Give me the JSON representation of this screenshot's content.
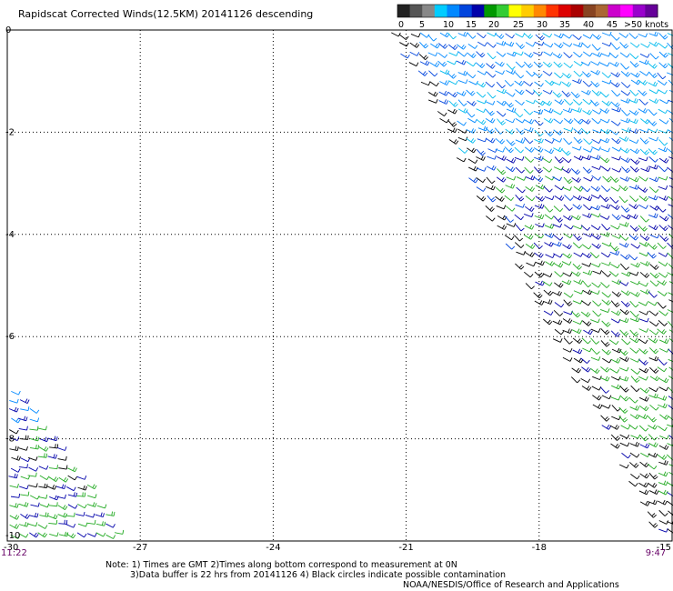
{
  "title": "Rapidscat Corrected Winds(12.5KM) 20141126 descending",
  "legend": {
    "labels": [
      "0",
      "5",
      "10",
      "15",
      "20",
      "25",
      "30",
      "35",
      "40",
      "45",
      ">50 knots"
    ],
    "colors": [
      "#222222",
      "#555555",
      "#888888",
      "#00ccff",
      "#0088ff",
      "#0044dd",
      "#0000aa",
      "#009900",
      "#33cc33",
      "#ffff00",
      "#ffcc00",
      "#ff8800",
      "#ff3300",
      "#dd0000",
      "#aa0000",
      "#884422",
      "#aa6633",
      "#cc00cc",
      "#ff00ff",
      "#9900cc",
      "#660099"
    ]
  },
  "chart_data": {
    "type": "scatter",
    "title": "Rapidscat Corrected Winds(12.5KM) 20141126 descending",
    "xlabel": "",
    "ylabel": "",
    "xlim": [
      -30,
      -15
    ],
    "ylim": [
      -10,
      0
    ],
    "x_ticks": [
      -30,
      -27,
      -24,
      -21,
      -18,
      -15
    ],
    "y_ticks": [
      0,
      -2,
      -4,
      -6,
      -8,
      -10
    ],
    "grid": true,
    "time_labels": [
      {
        "x": -30,
        "text": "11:22",
        "color": "#660066"
      },
      {
        "x": -15.6,
        "text": "9:47",
        "color": "#660066"
      }
    ],
    "swaths": [
      {
        "name": "",
        "polygon": [
          [
            -21.4,
            0
          ],
          [
            -15,
            0
          ],
          [
            -15,
            -10
          ],
          [
            -15.3,
            -10
          ]
        ]
      },
      {
        "name": "",
        "polygon": [
          [
            -30,
            -6.8
          ],
          [
            -27.3,
            -10
          ],
          [
            -30,
            -10
          ]
        ]
      }
    ]
  },
  "notes": {
    "line1": "Note: 1) Times are GMT 2)Times along bottom correspond to measurement at 0N",
    "line2": "3)Data buffer is 22 hrs from 20141126 4) Black circles indicate possible contamination",
    "line3": "NOAA/NESDIS/Office of Research and Applications"
  }
}
